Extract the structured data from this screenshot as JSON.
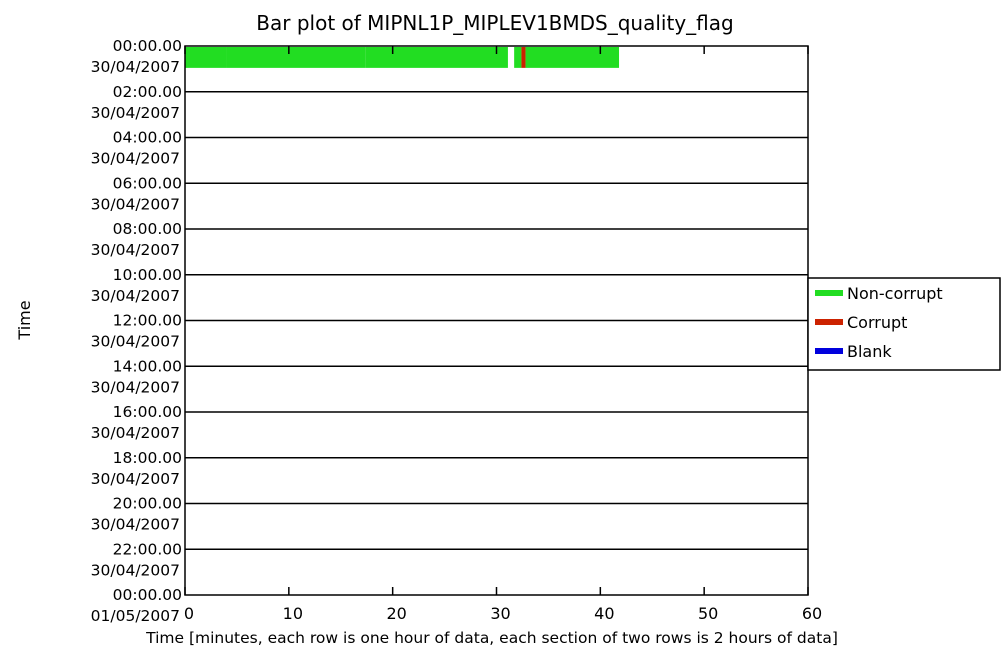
{
  "chart_data": {
    "type": "bar",
    "title": "Bar plot of MIPNL1P_MIPLEV1BMDS_quality_flag",
    "xlabel": "Time [minutes, each row is one hour of data, each section of two rows is 2 hours of data]",
    "ylabel": "Time",
    "xlim": [
      0,
      60
    ],
    "x_ticks": [
      "0",
      "10",
      "20",
      "30",
      "40",
      "50",
      "60"
    ],
    "y_ticks": [
      {
        "time": "00:00.00",
        "date": "30/04/2007"
      },
      {
        "time": "02:00.00",
        "date": "30/04/2007"
      },
      {
        "time": "04:00.00",
        "date": "30/04/2007"
      },
      {
        "time": "06:00.00",
        "date": "30/04/2007"
      },
      {
        "time": "08:00.00",
        "date": "30/04/2007"
      },
      {
        "time": "10:00.00",
        "date": "30/04/2007"
      },
      {
        "time": "12:00.00",
        "date": "30/04/2007"
      },
      {
        "time": "14:00.00",
        "date": "30/04/2007"
      },
      {
        "time": "16:00.00",
        "date": "30/04/2007"
      },
      {
        "time": "18:00.00",
        "date": "30/04/2007"
      },
      {
        "time": "20:00.00",
        "date": "30/04/2007"
      },
      {
        "time": "22:00.00",
        "date": "30/04/2007"
      },
      {
        "time": "00:00.00",
        "date": "01/05/2007"
      }
    ],
    "legend_position": "right",
    "series": [
      {
        "name": "Non-corrupt",
        "color": "#22dd22"
      },
      {
        "name": "Corrupt",
        "color": "#cc2200"
      },
      {
        "name": "Blank",
        "color": "#0000dd"
      }
    ],
    "segments": [
      {
        "row": 0,
        "start": 0.0,
        "end": 4.0,
        "status": "Non-corrupt"
      },
      {
        "row": 0,
        "start": 4.0,
        "end": 17.4,
        "status": "Non-corrupt"
      },
      {
        "row": 0,
        "start": 17.4,
        "end": 31.1,
        "status": "Non-corrupt"
      },
      {
        "row": 0,
        "start": 31.7,
        "end": 32.4,
        "status": "Non-corrupt"
      },
      {
        "row": 0,
        "start": 32.4,
        "end": 32.8,
        "status": "Corrupt"
      },
      {
        "row": 0,
        "start": 32.8,
        "end": 41.8,
        "status": "Non-corrupt"
      }
    ]
  }
}
